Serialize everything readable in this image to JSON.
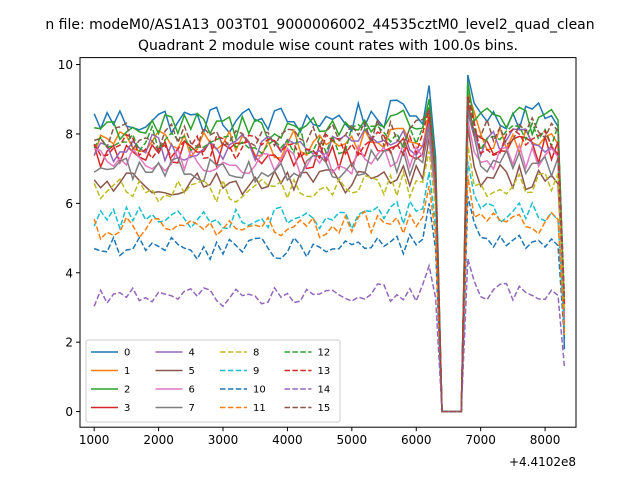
{
  "figure": {
    "suptitle": "n file: modeM0/AS1A13_003T01_9000006002_44535cztM0_level2_quad_clean",
    "title": "Quadrant 2 module wise count rates with 100.0s bins.",
    "x_offset_label": "+4.4102e8"
  },
  "chart_data": {
    "type": "line",
    "title": "Quadrant 2 module wise count rates with 100.0s bins.",
    "xlabel": "",
    "ylabel": "",
    "x_offset": "+4.4102e8",
    "xlim": [
      780,
      8480
    ],
    "ylim": [
      -0.45,
      10.2
    ],
    "xticks": [
      1000,
      2000,
      3000,
      4000,
      5000,
      6000,
      7000,
      8000
    ],
    "xtick_labels": [
      "1000",
      "2000",
      "3000",
      "4000",
      "5000",
      "6000",
      "7000",
      "8000"
    ],
    "yticks": [
      0,
      2,
      4,
      6,
      8,
      10
    ],
    "ytick_labels": [
      "0",
      "2",
      "4",
      "6",
      "8",
      "10"
    ],
    "grid": false,
    "legend_position": "lower-left",
    "legend_columns": 4,
    "x_start": 1000,
    "x_step": 100,
    "n_points": 74,
    "gap_start_index": 54,
    "gap_end_index": 57,
    "series": [
      {
        "name": "0",
        "color": "#1f77b4",
        "style": "solid",
        "level": 8.4,
        "peak1": 9.4,
        "peak2": 9.7,
        "end": 1.8
      },
      {
        "name": "1",
        "color": "#ff7f0e",
        "style": "solid",
        "level": 7.7,
        "peak1": 8.6,
        "peak2": 9.2,
        "end": 2.2
      },
      {
        "name": "2",
        "color": "#2ca02c",
        "style": "solid",
        "level": 8.2,
        "peak1": 9.0,
        "peak2": 9.5,
        "end": 2.8
      },
      {
        "name": "3",
        "color": "#d62728",
        "style": "solid",
        "level": 7.4,
        "peak1": 8.5,
        "peak2": 8.9,
        "end": 2.5
      },
      {
        "name": "4",
        "color": "#9467bd",
        "style": "solid",
        "level": 7.6,
        "peak1": 8.3,
        "peak2": 8.7,
        "end": 2.7
      },
      {
        "name": "5",
        "color": "#8c564b",
        "style": "solid",
        "level": 6.6,
        "peak1": 7.9,
        "peak2": 8.2,
        "end": 3.0
      },
      {
        "name": "6",
        "color": "#e377c2",
        "style": "solid",
        "level": 7.2,
        "peak1": 8.0,
        "peak2": 8.4,
        "end": 2.6
      },
      {
        "name": "7",
        "color": "#7f7f7f",
        "style": "solid",
        "level": 7.0,
        "peak1": 8.2,
        "peak2": 8.6,
        "end": 2.9
      },
      {
        "name": "8",
        "color": "#bcbd22",
        "style": "dashed",
        "level": 6.4,
        "peak1": 7.5,
        "peak2": 7.7,
        "end": 2.9
      },
      {
        "name": "9",
        "color": "#17becf",
        "style": "dashed",
        "level": 5.6,
        "peak1": 6.9,
        "peak2": 7.2,
        "end": 2.4
      },
      {
        "name": "10",
        "color": "#1f77b4",
        "style": "dashed",
        "level": 4.7,
        "peak1": 6.0,
        "peak2": 6.2,
        "end": 2.1
      },
      {
        "name": "11",
        "color": "#ff7f0e",
        "style": "dashed",
        "level": 5.3,
        "peak1": 6.5,
        "peak2": 6.8,
        "end": 2.3
      },
      {
        "name": "12",
        "color": "#2ca02c",
        "style": "dashed",
        "level": 7.8,
        "peak1": 8.8,
        "peak2": 9.2,
        "end": 3.2
      },
      {
        "name": "13",
        "color": "#d62728",
        "style": "dashed",
        "level": 7.6,
        "peak1": 8.7,
        "peak2": 9.1,
        "end": 3.1
      },
      {
        "name": "14",
        "color": "#9467bd",
        "style": "dashed",
        "level": 3.3,
        "peak1": 4.2,
        "peak2": 4.4,
        "end": 1.3
      },
      {
        "name": "15",
        "color": "#8c564b",
        "style": "dashed",
        "level": 7.9,
        "peak1": 8.7,
        "peak2": 9.0,
        "end": 3.3
      }
    ]
  }
}
